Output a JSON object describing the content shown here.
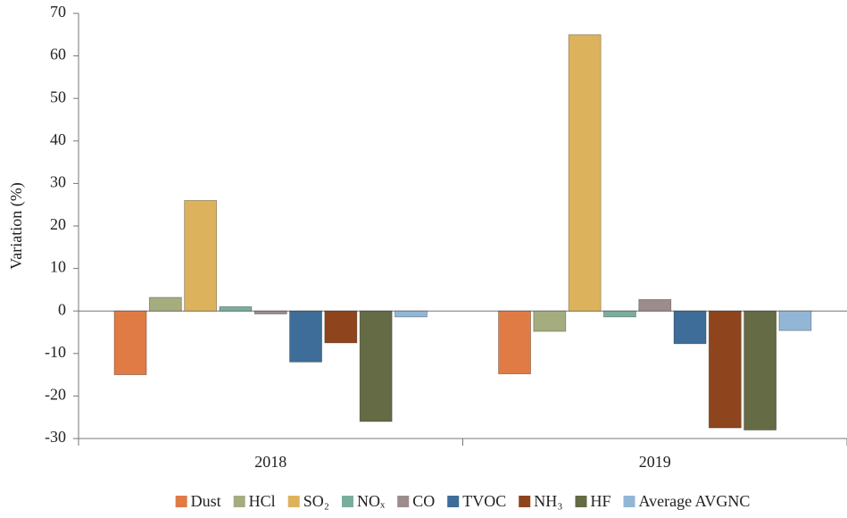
{
  "chart_data": {
    "type": "bar",
    "y_label": "Variation (%)",
    "categories": [
      "2018",
      "2019"
    ],
    "series": [
      {
        "name": "Dust",
        "color": "#e07b46",
        "values": [
          -15,
          -14.8
        ]
      },
      {
        "name": "HCl",
        "color": "#a5ad7f",
        "values": [
          3.2,
          -4.8
        ]
      },
      {
        "name": "SO₂",
        "color": "#dcb35c",
        "values": [
          26,
          65
        ]
      },
      {
        "name": "NOₓ",
        "color": "#7aae9c",
        "values": [
          1,
          -1.4
        ]
      },
      {
        "name": "CO",
        "color": "#9c8c8c",
        "values": [
          -0.7,
          2.7
        ]
      },
      {
        "name": "TVOC",
        "color": "#3d6d98",
        "values": [
          -12,
          -7.7
        ]
      },
      {
        "name": "NH₃",
        "color": "#8e451d",
        "values": [
          -7.5,
          -27.5
        ]
      },
      {
        "name": "HF",
        "color": "#646b45",
        "values": [
          -26,
          -28
        ]
      },
      {
        "name": "Average AVGNC",
        "color": "#92b6d6",
        "values": [
          -1.4,
          -4.6
        ]
      }
    ],
    "ylim": [
      -30,
      70
    ],
    "yticks": [
      -30,
      -20,
      -10,
      0,
      10,
      20,
      30,
      40,
      50,
      60,
      70
    ],
    "grid": false,
    "legend": "bottom"
  }
}
